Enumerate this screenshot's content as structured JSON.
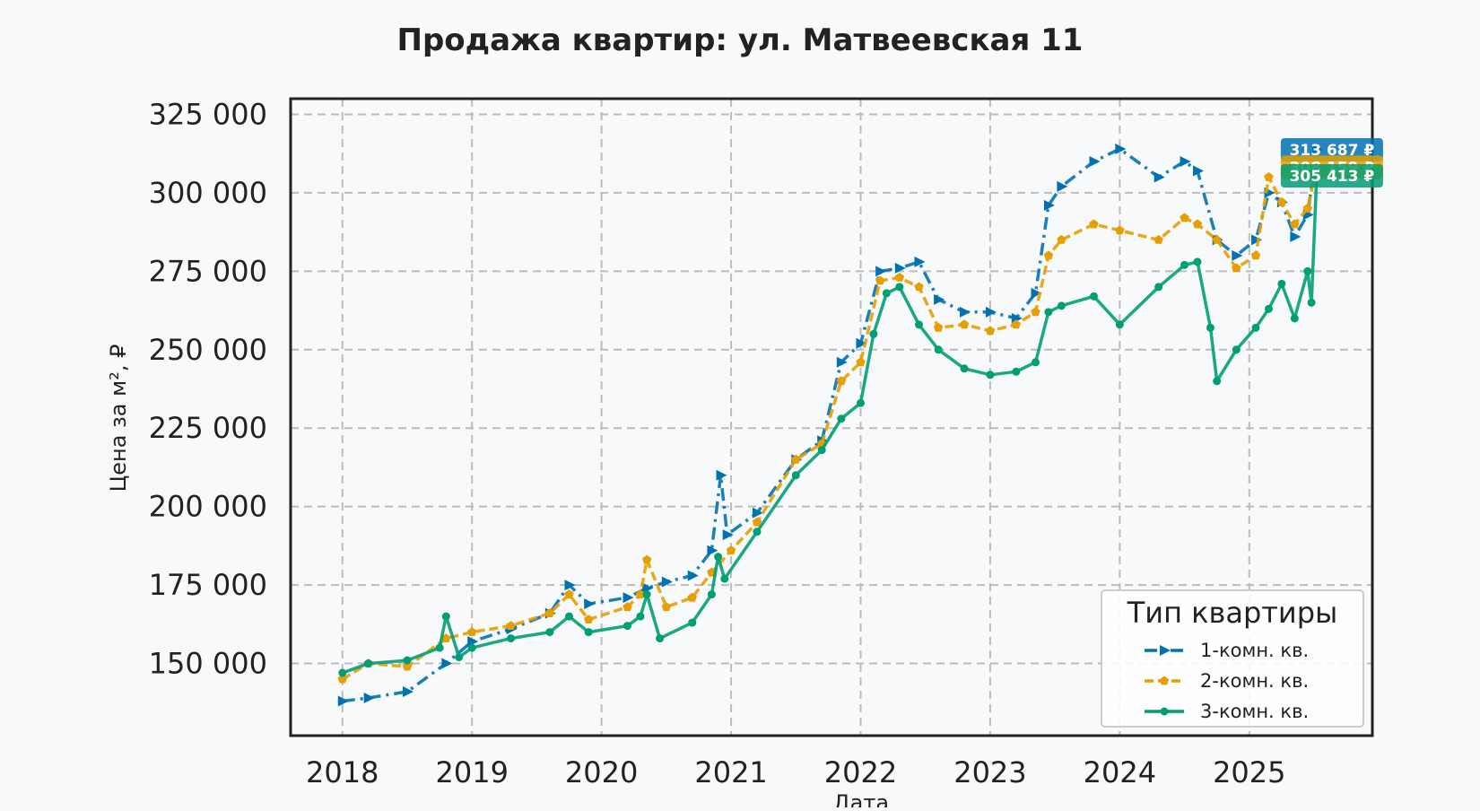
{
  "chart_data": {
    "type": "line",
    "title": "Продажа квартир: ул. Матвеевская 11",
    "xlabel": "Дата",
    "ylabel": "Цена за м², ₽",
    "xlim": [
      2017.6,
      2025.95
    ],
    "ylim": [
      127000,
      330000
    ],
    "x_ticks": [
      2018,
      2019,
      2020,
      2021,
      2022,
      2023,
      2024,
      2025
    ],
    "x_tick_labels": [
      "2018",
      "2019",
      "2020",
      "2021",
      "2022",
      "2023",
      "2024",
      "2025"
    ],
    "y_ticks": [
      150000,
      175000,
      200000,
      225000,
      250000,
      275000,
      300000,
      325000
    ],
    "y_tick_labels": [
      "150 000",
      "175 000",
      "200 000",
      "225 000",
      "250 000",
      "275 000",
      "300 000",
      "325 000"
    ],
    "grid": true,
    "legend": {
      "title": "Тип квартиры",
      "placement": "bottom-right"
    },
    "series": [
      {
        "name": "1-комн. кв.",
        "color": "#0072b2",
        "line_style": "dash-dot",
        "marker": "triangle-right",
        "end_label": "313 687 ₽",
        "x": [
          2018.0,
          2018.2,
          2018.5,
          2018.8,
          2019.0,
          2019.3,
          2019.6,
          2019.75,
          2019.9,
          2020.2,
          2020.35,
          2020.5,
          2020.7,
          2020.85,
          2020.92,
          2020.97,
          2021.2,
          2021.5,
          2021.7,
          2021.85,
          2022.0,
          2022.15,
          2022.3,
          2022.45,
          2022.6,
          2022.8,
          2023.0,
          2023.2,
          2023.35,
          2023.45,
          2023.55,
          2023.8,
          2024.0,
          2024.3,
          2024.5,
          2024.6,
          2024.75,
          2024.9,
          2025.05,
          2025.15,
          2025.25,
          2025.35,
          2025.45,
          2025.52
        ],
        "y": [
          138000,
          139000,
          141000,
          150000,
          157000,
          161000,
          166000,
          175000,
          169000,
          171000,
          174000,
          176000,
          178000,
          186000,
          210000,
          191000,
          198000,
          215000,
          221000,
          246000,
          252000,
          275000,
          276000,
          278000,
          266000,
          262000,
          262000,
          260000,
          268000,
          296000,
          302000,
          310000,
          314000,
          305000,
          310000,
          307000,
          285000,
          280000,
          285000,
          300000,
          297000,
          286000,
          293000,
          313687
        ]
      },
      {
        "name": "2-комн. кв.",
        "color": "#e69f00",
        "line_style": "dashed",
        "marker": "pentagon",
        "end_label": "308 159 ₽",
        "x": [
          2018.0,
          2018.2,
          2018.5,
          2018.8,
          2019.0,
          2019.3,
          2019.6,
          2019.75,
          2019.9,
          2020.2,
          2020.3,
          2020.35,
          2020.5,
          2020.7,
          2020.85,
          2021.0,
          2021.2,
          2021.5,
          2021.7,
          2021.85,
          2022.0,
          2022.15,
          2022.3,
          2022.45,
          2022.6,
          2022.8,
          2023.0,
          2023.2,
          2023.35,
          2023.45,
          2023.55,
          2023.8,
          2024.0,
          2024.3,
          2024.5,
          2024.6,
          2024.75,
          2024.9,
          2025.05,
          2025.15,
          2025.25,
          2025.35,
          2025.45,
          2025.52
        ],
        "y": [
          145000,
          150000,
          149000,
          158000,
          160000,
          162000,
          166000,
          172000,
          164000,
          168000,
          172000,
          183000,
          168000,
          171000,
          179000,
          186000,
          195000,
          215000,
          220000,
          240000,
          246000,
          272000,
          273000,
          270000,
          257000,
          258000,
          256000,
          258000,
          262000,
          280000,
          285000,
          290000,
          288000,
          285000,
          292000,
          290000,
          285000,
          276000,
          280000,
          305000,
          297000,
          290000,
          295000,
          308159
        ]
      },
      {
        "name": "3-комн. кв.",
        "color": "#009e73",
        "line_style": "solid",
        "marker": "circle",
        "end_label": "305 413 ₽",
        "x": [
          2018.0,
          2018.2,
          2018.5,
          2018.75,
          2018.8,
          2018.9,
          2019.0,
          2019.3,
          2019.6,
          2019.75,
          2019.9,
          2020.2,
          2020.3,
          2020.35,
          2020.45,
          2020.7,
          2020.85,
          2020.9,
          2020.95,
          2021.2,
          2021.5,
          2021.7,
          2021.85,
          2022.0,
          2022.1,
          2022.2,
          2022.3,
          2022.45,
          2022.6,
          2022.8,
          2023.0,
          2023.2,
          2023.35,
          2023.45,
          2023.55,
          2023.8,
          2024.0,
          2024.3,
          2024.5,
          2024.6,
          2024.7,
          2024.75,
          2024.9,
          2025.05,
          2025.15,
          2025.25,
          2025.35,
          2025.45,
          2025.48,
          2025.52
        ],
        "y": [
          147000,
          150000,
          151000,
          155000,
          165000,
          152000,
          155000,
          158000,
          160000,
          165000,
          160000,
          162000,
          165000,
          172000,
          158000,
          163000,
          172000,
          184000,
          177000,
          192000,
          210000,
          218000,
          228000,
          233000,
          255000,
          268000,
          270000,
          258000,
          250000,
          244000,
          242000,
          243000,
          246000,
          262000,
          264000,
          267000,
          258000,
          270000,
          277000,
          278000,
          257000,
          240000,
          250000,
          257000,
          263000,
          271000,
          260000,
          275000,
          265000,
          305413
        ]
      }
    ]
  }
}
